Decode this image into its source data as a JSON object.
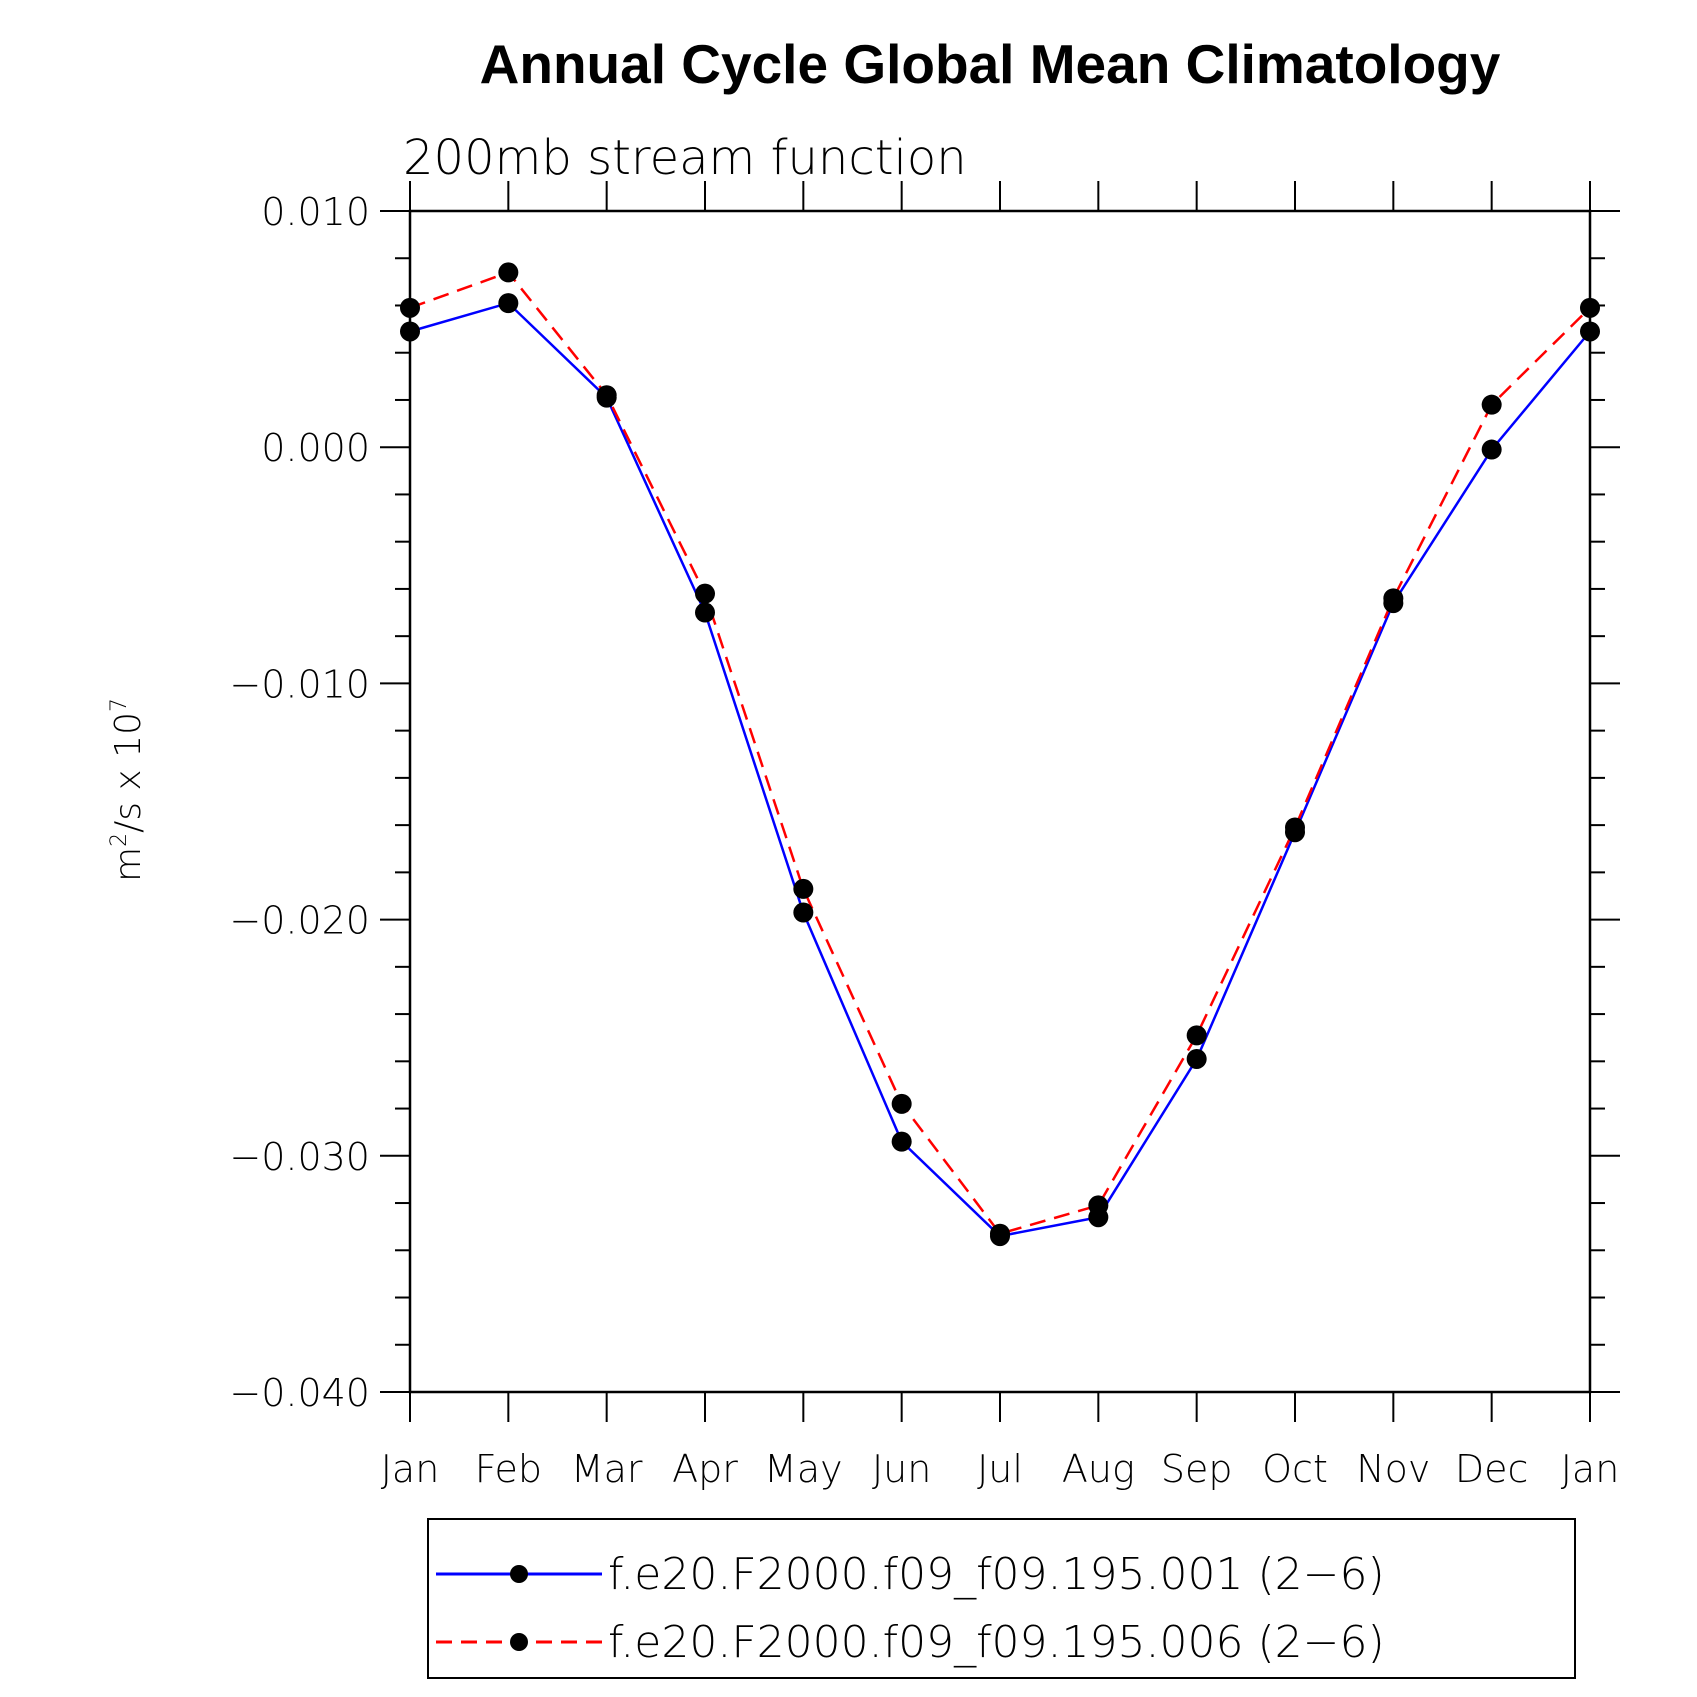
{
  "chart_data": {
    "type": "line",
    "title": "Annual Cycle Global Mean Climatology",
    "subtitle": "200mb stream function",
    "ylabel_base": "m",
    "ylabel_sup1": "2",
    "ylabel_mid": "/s x 10",
    "ylabel_sup2": "7",
    "categories": [
      "Jan",
      "Feb",
      "Mar",
      "Apr",
      "May",
      "Jun",
      "Jul",
      "Aug",
      "Sep",
      "Oct",
      "Nov",
      "Dec",
      "Jan"
    ],
    "ylim": [
      -0.04,
      0.01
    ],
    "yticks": [
      0.01,
      0.0,
      -0.01,
      -0.02,
      -0.03,
      -0.04
    ],
    "ytick_labels": [
      "0.010",
      "0.000",
      "−0.010",
      "−0.020",
      "−0.030",
      "−0.040"
    ],
    "series": [
      {
        "name": "f.e20.F2000.f09_f09.195.001 (2−6)",
        "color": "#0000ff",
        "dash": "solid",
        "values": [
          0.0049,
          0.0061,
          0.0021,
          -0.007,
          -0.0197,
          -0.0294,
          -0.0334,
          -0.0326,
          -0.0259,
          -0.0163,
          -0.0066,
          -0.0001,
          0.0049
        ]
      },
      {
        "name": "f.e20.F2000.f09_f09.195.006 (2−6)",
        "color": "#ff0000",
        "dash": "dashed",
        "values": [
          0.0059,
          0.0074,
          0.0022,
          -0.0062,
          -0.0187,
          -0.0278,
          -0.0333,
          -0.0321,
          -0.0249,
          -0.0161,
          -0.0064,
          0.0018,
          0.0059
        ]
      }
    ],
    "marker_color": "#000000",
    "legend_position": "bottom"
  }
}
